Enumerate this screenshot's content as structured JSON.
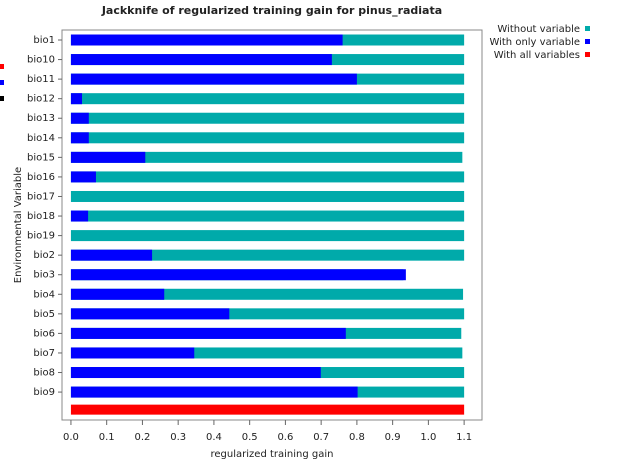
{
  "chart_data": {
    "type": "jackknife_bar",
    "title": "Jackknife of regularized training gain for pinus_radiata",
    "x_label": "regularized training gain",
    "y_label": "Environmental Variable",
    "categories": [
      "bio1",
      "bio10",
      "bio11",
      "bio12",
      "bio13",
      "bio14",
      "bio15",
      "bio16",
      "bio17",
      "bio18",
      "bio19",
      "bio2",
      "bio3",
      "bio4",
      "bio5",
      "bio6",
      "bio7",
      "bio8",
      "bio9"
    ],
    "series": [
      {
        "name": "Without variable",
        "color": "#00aaaa",
        "values": [
          1.1,
          1.1,
          1.1,
          1.1,
          1.1,
          1.1,
          1.095,
          1.1,
          1.1,
          1.1,
          1.1,
          1.1,
          0.93,
          1.097,
          1.1,
          1.092,
          1.095,
          1.1,
          1.1
        ]
      },
      {
        "name": "With only variable",
        "color": "#0000ff",
        "values": [
          0.76,
          0.73,
          0.8,
          0.031,
          0.05,
          0.05,
          0.208,
          0.07,
          0,
          0.048,
          0,
          0.227,
          0.937,
          0.261,
          0.443,
          0.769,
          0.345,
          0.699,
          0.802
        ]
      }
    ],
    "all_variables": {
      "name": "With all variables",
      "color": "#ff0000",
      "value": 1.1
    },
    "xlim": [
      -0.025,
      1.15
    ],
    "xticks": [
      {
        "value": 0,
        "label": "0.0"
      },
      0.1,
      0.2,
      0.3,
      0.4,
      0.5,
      0.6,
      0.7,
      0.8,
      0.9,
      {
        "value": 1,
        "label": "1.0"
      },
      1.1
    ]
  }
}
